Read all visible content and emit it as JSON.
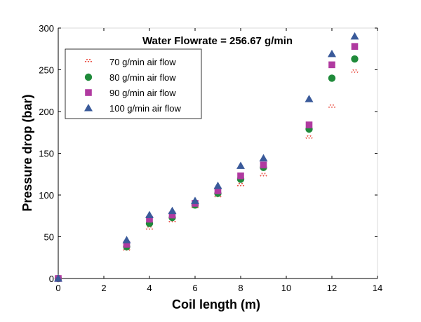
{
  "chart_data": {
    "type": "scatter",
    "title": "Water Flowrate = 256.67 g/min",
    "xlabel": "Coil length (m)",
    "ylabel": "Pressure drop (bar)",
    "xlim": [
      0,
      14
    ],
    "ylim": [
      0,
      300
    ],
    "xticks": [
      0,
      2,
      4,
      6,
      8,
      10,
      12,
      14
    ],
    "yticks": [
      0,
      50,
      100,
      150,
      200,
      250,
      300
    ],
    "grid": false,
    "legend_position": "top-left",
    "x": [
      0,
      3,
      4,
      5,
      6,
      7,
      8,
      9,
      11,
      12,
      13
    ],
    "series": [
      {
        "name": "70 g/min air flow",
        "marker": "small-triangle-cluster",
        "color": "#e8473b",
        "values": [
          0,
          34,
          59,
          68,
          85,
          98,
          111,
          123,
          168,
          205,
          247
        ]
      },
      {
        "name": "80 g/min air flow",
        "marker": "circle",
        "color": "#1f8a3a",
        "values": [
          0,
          38,
          66,
          73,
          88,
          102,
          119,
          133,
          179,
          240,
          263
        ]
      },
      {
        "name": "90 g/min air flow",
        "marker": "square",
        "color": "#b03aa0",
        "values": [
          0,
          41,
          71,
          76,
          90,
          105,
          123,
          136,
          184,
          256,
          278
        ]
      },
      {
        "name": "100 g/min air flow",
        "marker": "triangle",
        "color": "#3a5a9a",
        "values": [
          0,
          46,
          76,
          81,
          93,
          111,
          135,
          144,
          215,
          269,
          290
        ]
      }
    ]
  }
}
